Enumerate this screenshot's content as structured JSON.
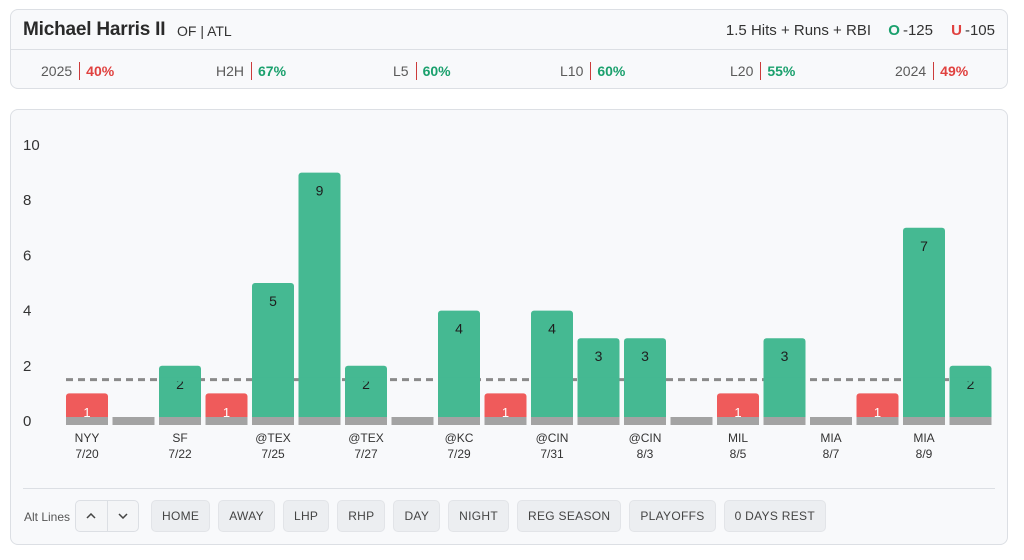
{
  "header": {
    "player_name": "Michael Harris II",
    "player_meta": "OF | ATL",
    "prop": "1.5 Hits + Runs + RBI",
    "over": {
      "tag": "O",
      "odds": "-125"
    },
    "under": {
      "tag": "U",
      "odds": "-105"
    }
  },
  "stats": [
    {
      "label": "2025",
      "value": "40%",
      "tone": "red"
    },
    {
      "label": "H2H",
      "value": "67%",
      "tone": "green"
    },
    {
      "label": "L5",
      "value": "60%",
      "tone": "green"
    },
    {
      "label": "L10",
      "value": "60%",
      "tone": "green"
    },
    {
      "label": "L20",
      "value": "55%",
      "tone": "green"
    },
    {
      "label": "2024",
      "value": "49%",
      "tone": "red"
    }
  ],
  "chart_data": {
    "type": "bar",
    "line": 1.5,
    "ylim": [
      0,
      10
    ],
    "yticks": [
      "0",
      "2",
      "4",
      "6",
      "8",
      "10"
    ],
    "values": [
      1,
      0,
      2,
      1,
      5,
      9,
      2,
      0,
      4,
      1,
      4,
      3,
      3,
      0,
      1,
      3,
      0,
      1,
      7,
      2
    ],
    "x_labels": [
      {
        "index": 0,
        "opponent": "NYY",
        "date": "7/20"
      },
      {
        "index": 2,
        "opponent": "SF",
        "date": "7/22"
      },
      {
        "index": 4,
        "opponent": "@TEX",
        "date": "7/25"
      },
      {
        "index": 6,
        "opponent": "@TEX",
        "date": "7/27"
      },
      {
        "index": 8,
        "opponent": "@KC",
        "date": "7/29"
      },
      {
        "index": 10,
        "opponent": "@CIN",
        "date": "7/31"
      },
      {
        "index": 12,
        "opponent": "@CIN",
        "date": "8/3"
      },
      {
        "index": 14,
        "opponent": "MIL",
        "date": "8/5"
      },
      {
        "index": 16,
        "opponent": "MIA",
        "date": "8/7"
      },
      {
        "index": 18,
        "opponent": "MIA",
        "date": "8/9"
      }
    ],
    "colors": {
      "over": "#45b992",
      "under": "#ef5b5b",
      "base": "#a3a3a3",
      "line": "#8a8a8a"
    }
  },
  "controls": {
    "alt_lines_label": "Alt Lines",
    "up_icon": "chevron-up-icon",
    "down_icon": "chevron-down-icon",
    "filters": [
      "HOME",
      "AWAY",
      "LHP",
      "RHP",
      "DAY",
      "NIGHT",
      "REG SEASON",
      "PLAYOFFS",
      "0 DAYS REST"
    ]
  }
}
